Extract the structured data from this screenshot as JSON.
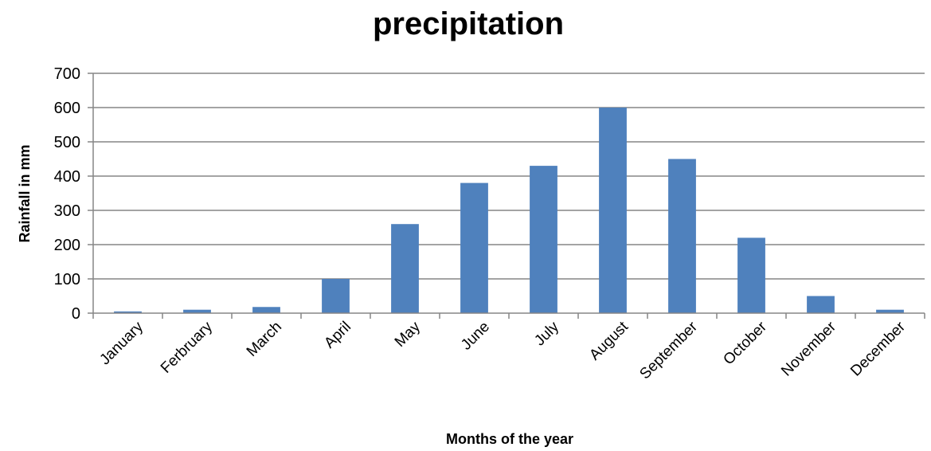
{
  "chart_data": {
    "type": "bar",
    "title": "precipitation",
    "xlabel": "Months of the year",
    "ylabel": "Rainfall in mm",
    "categories": [
      "January",
      "February",
      "March",
      "April",
      "May",
      "June",
      "July",
      "August",
      "September",
      "October",
      "November",
      "December"
    ],
    "category_labels": [
      "January",
      "Ferbruary",
      "March",
      "April",
      "May",
      "June",
      "July",
      "August",
      "September",
      "October",
      "November",
      "December"
    ],
    "values": [
      5,
      10,
      18,
      100,
      260,
      380,
      430,
      600,
      450,
      220,
      50,
      10
    ],
    "ylim": [
      0,
      700
    ],
    "yticks": [
      "0",
      "100",
      "200",
      "300",
      "400",
      "500",
      "600",
      "700"
    ],
    "grid": true,
    "legend": "none",
    "colors": {
      "bar": "#4f81bd",
      "grid": "#868686",
      "axis": "#868686"
    }
  }
}
